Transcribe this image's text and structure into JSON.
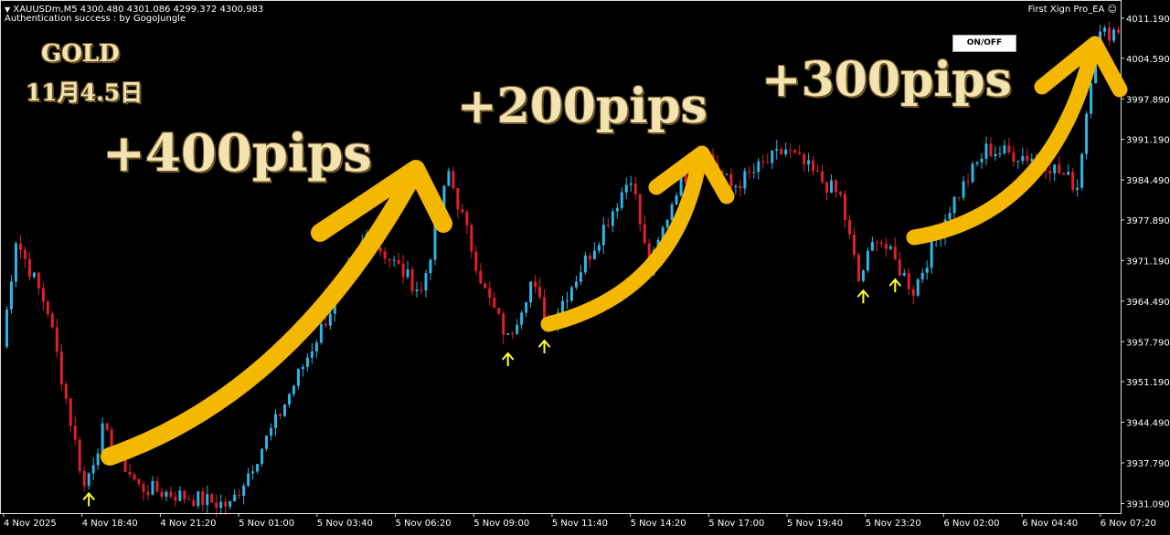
{
  "header": {
    "symbol_line": "XAUUSDm,M5  4300.480 4301.086 4299.372 4300.983",
    "status_line": "Authentication success : by GogoJungle"
  },
  "ea": {
    "name": "First Xign Pro_EA",
    "icon": "smiley-icon",
    "button": "ON/OFF"
  },
  "annotations": {
    "title": "GOLD",
    "date": "11月4.5日",
    "gain1": "+400pips",
    "gain2": "+200pips",
    "gain3": "+300pips"
  },
  "colors": {
    "bull": "#2fb4e6",
    "bear": "#e0202a",
    "arrow": "#f5b800",
    "signal": "#ffff33",
    "background": "#000000"
  },
  "chart_data": {
    "type": "candlestick",
    "symbol": "XAUUSDm",
    "timeframe": "M5",
    "y_ticks": [
      "4011.190",
      "4004.590",
      "3997.890",
      "3991.190",
      "3984.490",
      "3977.890",
      "3971.190",
      "3964.490",
      "3957.790",
      "3951.190",
      "3944.490",
      "3937.790",
      "3931.090"
    ],
    "x_ticks": [
      "4 Nov 2025",
      "4 Nov 18:40",
      "4 Nov 21:20",
      "5 Nov 01:00",
      "5 Nov 03:40",
      "5 Nov 06:20",
      "5 Nov 09:00",
      "5 Nov 11:40",
      "5 Nov 14:20",
      "5 Nov 17:00",
      "5 Nov 19:40",
      "5 Nov 23:20",
      "6 Nov 02:00",
      "6 Nov 04:40",
      "6 Nov 07:20"
    ],
    "ylim": [
      3929.5,
      4013
    ],
    "price_path": [
      [
        0,
        3957
      ],
      [
        3,
        3974.8
      ],
      [
        10,
        3963
      ],
      [
        18,
        3933.8
      ],
      [
        22,
        3943
      ],
      [
        30,
        3933.8
      ],
      [
        50,
        3930.7
      ],
      [
        60,
        3944.5
      ],
      [
        70,
        3960
      ],
      [
        80,
        3975.5
      ],
      [
        92,
        3966
      ],
      [
        98,
        3985.7
      ],
      [
        106,
        3966
      ],
      [
        111,
        3958.2
      ],
      [
        116,
        3967.6
      ],
      [
        120,
        3960.6
      ],
      [
        130,
        3973.8
      ],
      [
        138,
        3985.4
      ],
      [
        142,
        3969.3
      ],
      [
        148,
        3983.2
      ],
      [
        154,
        3989.5
      ],
      [
        160,
        3983.2
      ],
      [
        172,
        3989.5
      ],
      [
        184,
        3981.7
      ],
      [
        188,
        3967.8
      ],
      [
        192,
        3975.5
      ],
      [
        200,
        3966.3
      ],
      [
        208,
        3980
      ],
      [
        216,
        3989.5
      ],
      [
        228,
        3988
      ],
      [
        236,
        3983.5
      ],
      [
        240,
        4008
      ],
      [
        245,
        4009.5
      ]
    ],
    "signals_buy": [
      19,
      111,
      119,
      189,
      196
    ]
  }
}
